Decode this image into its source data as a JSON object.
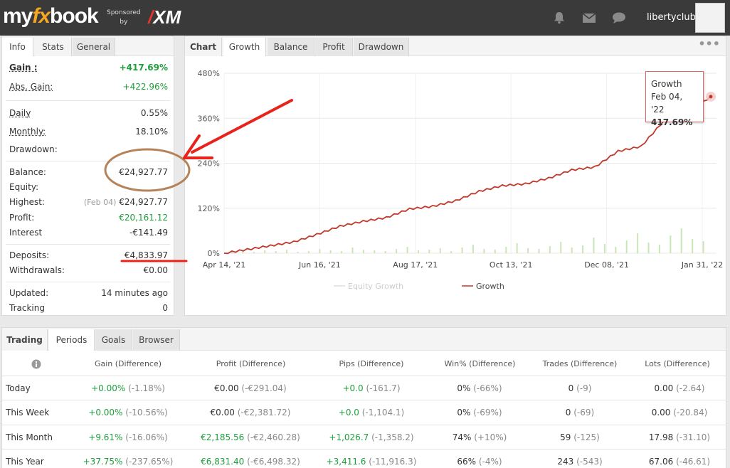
{
  "header": {
    "logo_my": "my",
    "logo_fx": "fx",
    "logo_book": "book",
    "sponsored": "Sponsored",
    "by": "by",
    "xm_brand": "XM",
    "username": "libertyclub",
    "icons": [
      "bell-icon",
      "mail-icon",
      "chat-icon"
    ]
  },
  "info_panel": {
    "tabs": [
      "Info",
      "Stats",
      "General"
    ],
    "gain": {
      "label": "Gain :",
      "value": "+417.69%"
    },
    "abs_gain": {
      "label": "Abs. Gain:",
      "value": "+422.96%"
    },
    "daily": {
      "label": "Daily",
      "value": "0.55%"
    },
    "monthly": {
      "label": "Monthly:",
      "value": "18.10%"
    },
    "drawdown": {
      "label": "Drawdown:",
      "value": ""
    },
    "balance": {
      "label": "Balance:",
      "value": "€24,927.77"
    },
    "equity": {
      "label": "Equity:",
      "value": ""
    },
    "highest": {
      "label": "Highest:",
      "date": "(Feb 04)",
      "value": "€24,927.77"
    },
    "profit": {
      "label": "Profit:",
      "value": "€20,161.12"
    },
    "interest": {
      "label": "Interest",
      "value": "-€141.49"
    },
    "deposits": {
      "label": "Deposits:",
      "value": "€4,833.97"
    },
    "withdrawals": {
      "label": "Withdrawals:",
      "value": "€0.00"
    },
    "updated": {
      "label": "Updated:",
      "value": "14 minutes ago"
    },
    "tracking": {
      "label": "Tracking",
      "value": "0"
    }
  },
  "chart_panel": {
    "tabs": [
      "Chart",
      "Growth",
      "Balance",
      "Profit",
      "Drawdown"
    ],
    "menu_icon": "ellipsis-icon",
    "tooltip": {
      "series": "Growth",
      "date": "Feb 04, '22",
      "value": "417.69%"
    },
    "legend": [
      "Equity Growth",
      "Growth"
    ]
  },
  "chart_data": {
    "type": "line",
    "title": "",
    "xlabel": "",
    "ylabel": "",
    "ylim": [
      0,
      480
    ],
    "y_ticks": [
      "480%",
      "360%",
      "240%",
      "120%",
      "0%"
    ],
    "x_ticks": [
      "Apr 14, '21",
      "Jun 16, '21",
      "Aug 17, '21",
      "Oct 13, '21",
      "Dec 08, '21",
      "Jan 31, '22"
    ],
    "grid": true,
    "legend_position": "bottom",
    "series": [
      {
        "name": "Growth",
        "color": "#c0392b",
        "x": [
          "Apr 14, '21",
          "May 10, '21",
          "May 30, '21",
          "Jun 10, '21",
          "Jun 16, '21",
          "Jun 20, '21",
          "Jul 10, '21",
          "Jul 25, '21",
          "Aug 17, '21",
          "Aug 30, '21",
          "Sep 15, '21",
          "Sep 25, '21",
          "Oct 13, '21",
          "Oct 30, '21",
          "Nov 15, '21",
          "Dec 08, '21",
          "Dec 20, '21",
          "Jan 05, '22",
          "Jan 15, '22",
          "Jan 25, '22",
          "Jan 31, '22",
          "Feb 04, '22"
        ],
        "y": [
          0,
          10,
          20,
          30,
          50,
          72,
          85,
          95,
          118,
          125,
          140,
          165,
          180,
          185,
          200,
          222,
          230,
          272,
          285,
          355,
          375,
          417.69
        ]
      },
      {
        "name": "Equity Growth",
        "color": "#cccccc",
        "x": [],
        "y": []
      }
    ],
    "volume_bars_color": "#c8e6b8"
  },
  "periods_panel": {
    "tabs": [
      "Trading",
      "Periods",
      "Goals",
      "Browser"
    ],
    "info_icon": "info-icon",
    "columns": [
      "Gain (Difference)",
      "Profit (Difference)",
      "Pips (Difference)",
      "Win% (Difference)",
      "Trades (Difference)",
      "Lots (Difference)"
    ],
    "rows": [
      {
        "label": "Today",
        "gain": "+0.00%",
        "gain_d": "(-1.18%)",
        "profit": "€0.00",
        "profit_d": "(-€291.04)",
        "pips": "+0.0",
        "pips_d": "(-161.7)",
        "win": "0%",
        "win_d": "(-66%)",
        "trades": "0",
        "trades_d": "(-9)",
        "lots": "0.00",
        "lots_d": "(-2.64)"
      },
      {
        "label": "This Week",
        "gain": "+0.00%",
        "gain_d": "(-10.56%)",
        "profit": "€0.00",
        "profit_d": "(-€2,381.72)",
        "pips": "+0.0",
        "pips_d": "(-1,104.1)",
        "win": "0%",
        "win_d": "(-69%)",
        "trades": "0",
        "trades_d": "(-69)",
        "lots": "0.00",
        "lots_d": "(-20.84)"
      },
      {
        "label": "This Month",
        "gain": "+9.61%",
        "gain_d": "(-16.06%)",
        "profit": "€2,185.56",
        "profit_d": "(-€2,460.28)",
        "pips": "+1,026.7",
        "pips_d": "(-1,358.2)",
        "win": "74%",
        "win_d": "(+10%)",
        "trades": "59",
        "trades_d": "(-125)",
        "lots": "17.98",
        "lots_d": "(-31.10)"
      },
      {
        "label": "This Year",
        "gain": "+37.75%",
        "gain_d": "(-237.65%)",
        "profit": "€6,831.40",
        "profit_d": "(-€6,498.32)",
        "pips": "+3,411.6",
        "pips_d": "(-11,916.3)",
        "win": "66%",
        "win_d": "(-4%)",
        "trades": "243",
        "trades_d": "(-543)",
        "lots": "67.06",
        "lots_d": "(-46.61)"
      }
    ]
  },
  "annotations": {
    "circle_color": "#b5835a",
    "arrow_color": "#e8231c",
    "underline_color": "#e8231c"
  }
}
